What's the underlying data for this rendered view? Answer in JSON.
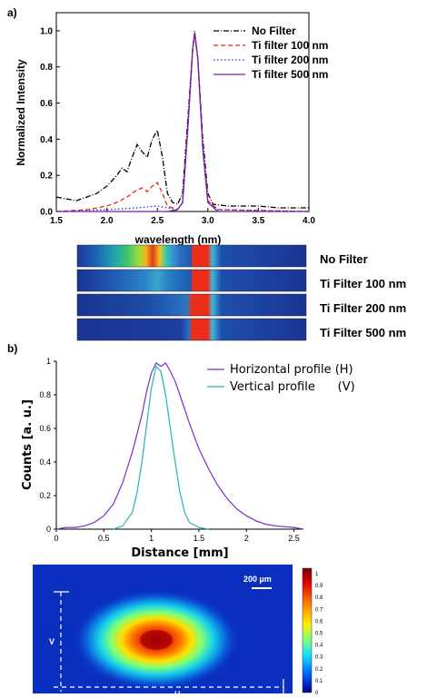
{
  "panel_a_label": "a)",
  "panel_b_label": "b)",
  "spectra_strips": {
    "labels": [
      "No Filter",
      "Ti Filter 100 nm",
      "Ti Filter 200 nm",
      "Ti Filter 500 nm"
    ]
  },
  "beam_image": {
    "scale_bar_label": "200 µm",
    "v_label": "V",
    "h_label": "H",
    "colorbar_ticks": [
      "1",
      "0.9",
      "0.8",
      "0.7",
      "0.6",
      "0.5",
      "0.4",
      "0.3",
      "0.2",
      "0.1",
      "0"
    ]
  },
  "chart_data": [
    {
      "type": "line",
      "xlabel": "wavelength (nm)",
      "ylabel": "Normalized Intensity",
      "xlim": [
        1.5,
        4.0
      ],
      "ylim": [
        0,
        1.1
      ],
      "x_ticks": [
        "1.5",
        "2.0",
        "2.5",
        "3.0",
        "3.5",
        "4.0"
      ],
      "y_ticks": [
        "0.0",
        "0.2",
        "0.4",
        "0.6",
        "0.8",
        "1.0"
      ],
      "legend_position": "top-right",
      "series": [
        {
          "name": "No Filter",
          "color": "#000000",
          "dash": "dashdot",
          "points": [
            [
              1.5,
              0.08
            ],
            [
              1.6,
              0.07
            ],
            [
              1.7,
              0.06
            ],
            [
              1.8,
              0.08
            ],
            [
              1.9,
              0.1
            ],
            [
              2.0,
              0.14
            ],
            [
              2.1,
              0.2
            ],
            [
              2.15,
              0.24
            ],
            [
              2.2,
              0.22
            ],
            [
              2.25,
              0.3
            ],
            [
              2.3,
              0.37
            ],
            [
              2.35,
              0.33
            ],
            [
              2.4,
              0.3
            ],
            [
              2.45,
              0.4
            ],
            [
              2.5,
              0.45
            ],
            [
              2.55,
              0.3
            ],
            [
              2.6,
              0.1
            ],
            [
              2.65,
              0.05
            ],
            [
              2.7,
              0.04
            ],
            [
              2.75,
              0.1
            ],
            [
              2.8,
              0.5
            ],
            [
              2.85,
              0.9
            ],
            [
              2.87,
              0.98
            ],
            [
              2.9,
              0.85
            ],
            [
              2.95,
              0.4
            ],
            [
              3.0,
              0.1
            ],
            [
              3.05,
              0.04
            ],
            [
              3.2,
              0.03
            ],
            [
              3.5,
              0.03
            ],
            [
              3.7,
              0.02
            ],
            [
              4.0,
              0.02
            ]
          ]
        },
        {
          "name": "Ti filter 100 nm",
          "color": "#e8281c",
          "dash": "dash",
          "points": [
            [
              1.5,
              0.0
            ],
            [
              1.8,
              0.01
            ],
            [
              2.0,
              0.03
            ],
            [
              2.1,
              0.05
            ],
            [
              2.2,
              0.08
            ],
            [
              2.3,
              0.12
            ],
            [
              2.35,
              0.13
            ],
            [
              2.4,
              0.11
            ],
            [
              2.45,
              0.14
            ],
            [
              2.5,
              0.16
            ],
            [
              2.55,
              0.1
            ],
            [
              2.6,
              0.03
            ],
            [
              2.7,
              0.01
            ],
            [
              2.75,
              0.05
            ],
            [
              2.8,
              0.45
            ],
            [
              2.85,
              0.9
            ],
            [
              2.87,
              0.99
            ],
            [
              2.9,
              0.85
            ],
            [
              2.95,
              0.35
            ],
            [
              3.0,
              0.06
            ],
            [
              3.1,
              0.01
            ],
            [
              4.0,
              0.0
            ]
          ]
        },
        {
          "name": "Ti filter 200 nm",
          "color": "#1f36d6",
          "dash": "dot",
          "points": [
            [
              1.5,
              0.0
            ],
            [
              2.0,
              0.01
            ],
            [
              2.3,
              0.02
            ],
            [
              2.5,
              0.03
            ],
            [
              2.6,
              0.02
            ],
            [
              2.7,
              0.01
            ],
            [
              2.75,
              0.05
            ],
            [
              2.8,
              0.45
            ],
            [
              2.85,
              0.9
            ],
            [
              2.87,
              1.0
            ],
            [
              2.9,
              0.85
            ],
            [
              2.95,
              0.35
            ],
            [
              3.0,
              0.05
            ],
            [
              3.1,
              0.01
            ],
            [
              4.0,
              0.0
            ]
          ]
        },
        {
          "name": "Ti filter 500 nm",
          "color": "#7a1fa6",
          "dash": "solid",
          "points": [
            [
              1.5,
              0.0
            ],
            [
              2.6,
              0.0
            ],
            [
              2.7,
              0.01
            ],
            [
              2.75,
              0.05
            ],
            [
              2.8,
              0.45
            ],
            [
              2.85,
              0.9
            ],
            [
              2.87,
              0.99
            ],
            [
              2.9,
              0.85
            ],
            [
              2.95,
              0.35
            ],
            [
              3.0,
              0.05
            ],
            [
              3.1,
              0.0
            ],
            [
              4.0,
              0.0
            ]
          ]
        }
      ]
    },
    {
      "type": "line",
      "xlabel": "Distance [mm]",
      "ylabel": "Counts [a. u.]",
      "xlim": [
        0,
        2.6
      ],
      "ylim": [
        0,
        1
      ],
      "x_ticks": [
        "0",
        "0.5",
        "1",
        "1.5",
        "2",
        "2.5"
      ],
      "y_ticks": [
        "0",
        "0.2",
        "0.4",
        "0.6",
        "0.8",
        "1"
      ],
      "legend_position": "top-right",
      "series": [
        {
          "name": "Horizontal profile (H)",
          "color": "#7b2fc9",
          "points": [
            [
              0.0,
              0.0
            ],
            [
              0.1,
              0.01
            ],
            [
              0.2,
              0.01
            ],
            [
              0.3,
              0.02
            ],
            [
              0.4,
              0.04
            ],
            [
              0.5,
              0.08
            ],
            [
              0.6,
              0.15
            ],
            [
              0.7,
              0.28
            ],
            [
              0.8,
              0.46
            ],
            [
              0.9,
              0.68
            ],
            [
              0.95,
              0.82
            ],
            [
              1.0,
              0.93
            ],
            [
              1.05,
              0.99
            ],
            [
              1.1,
              0.97
            ],
            [
              1.15,
              0.99
            ],
            [
              1.2,
              0.94
            ],
            [
              1.25,
              0.88
            ],
            [
              1.3,
              0.8
            ],
            [
              1.4,
              0.63
            ],
            [
              1.5,
              0.48
            ],
            [
              1.6,
              0.36
            ],
            [
              1.7,
              0.26
            ],
            [
              1.8,
              0.18
            ],
            [
              1.9,
              0.12
            ],
            [
              2.0,
              0.08
            ],
            [
              2.1,
              0.05
            ],
            [
              2.2,
              0.03
            ],
            [
              2.3,
              0.02
            ],
            [
              2.5,
              0.01
            ],
            [
              2.6,
              0.0
            ]
          ]
        },
        {
          "name": "Vertical profile      (V)",
          "color": "#20b7b0",
          "points": [
            [
              0.6,
              0.0
            ],
            [
              0.7,
              0.02
            ],
            [
              0.8,
              0.1
            ],
            [
              0.85,
              0.22
            ],
            [
              0.9,
              0.4
            ],
            [
              0.95,
              0.62
            ],
            [
              1.0,
              0.84
            ],
            [
              1.05,
              0.97
            ],
            [
              1.1,
              0.94
            ],
            [
              1.15,
              0.8
            ],
            [
              1.2,
              0.6
            ],
            [
              1.25,
              0.4
            ],
            [
              1.3,
              0.22
            ],
            [
              1.35,
              0.1
            ],
            [
              1.4,
              0.04
            ],
            [
              1.5,
              0.01
            ],
            [
              1.6,
              0.0
            ]
          ]
        }
      ]
    }
  ]
}
